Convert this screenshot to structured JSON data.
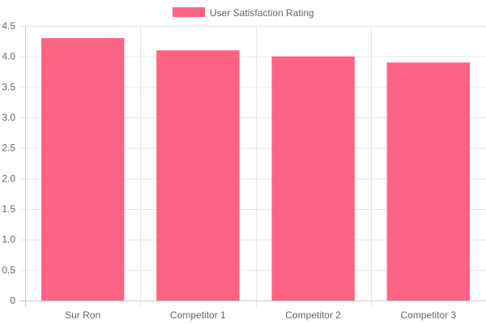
{
  "chart_data": {
    "type": "bar",
    "categories": [
      "Sur Ron",
      "Competitor 1",
      "Competitor 2",
      "Competitor 3"
    ],
    "series": [
      {
        "name": "User Satisfaction Rating",
        "values": [
          4.3,
          4.1,
          4.0,
          3.9
        ]
      }
    ],
    "ylim": [
      0,
      4.5
    ],
    "yticks": [
      "0",
      "0.5",
      "1.0",
      "1.5",
      "2.0",
      "2.5",
      "3.0",
      "3.5",
      "4.0",
      "4.5"
    ],
    "ytick_values": [
      0,
      0.5,
      1.0,
      1.5,
      2.0,
      2.5,
      3.0,
      3.5,
      4.0,
      4.5
    ],
    "grid": true,
    "legend_position": "top",
    "colors": {
      "bar_fill": "#ff6384",
      "grid": "#e5e5e5",
      "axis": "#c8c8c8",
      "text": "#666666"
    }
  }
}
